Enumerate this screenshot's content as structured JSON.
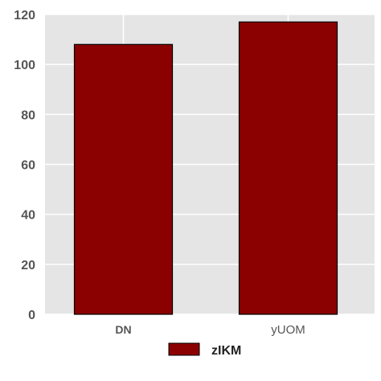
{
  "chart_data": {
    "type": "bar",
    "categories": [
      "DN",
      "yUOM"
    ],
    "series": [
      {
        "name": "zIKM",
        "values": [
          108,
          117
        ],
        "color": "#8b0000"
      }
    ],
    "ylim": [
      0,
      120
    ],
    "yticks": [
      0,
      20,
      40,
      60,
      80,
      100,
      120
    ],
    "grid": true,
    "background": "#e5e5e5",
    "legend_position": "bottom-center"
  }
}
